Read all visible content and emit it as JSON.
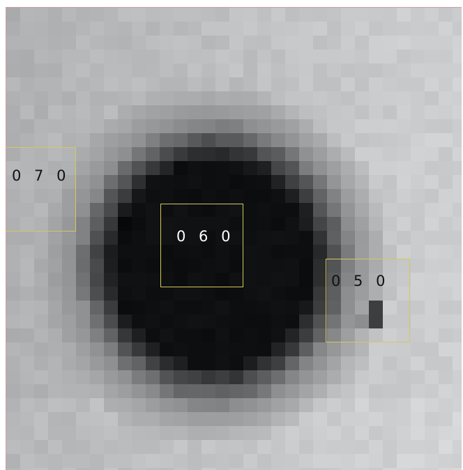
{
  "image": {
    "description_free": true,
    "background_gray": "#b3b6b8",
    "blob_color": "#0a0e10",
    "box_color": "#d8c85a"
  },
  "markers": [
    {
      "label": "0 7 0",
      "text_color": "#111111"
    },
    {
      "label": "0 6 0",
      "text_color": "#ffffff"
    },
    {
      "label": "0 5 0",
      "text_color": "#111111"
    }
  ]
}
